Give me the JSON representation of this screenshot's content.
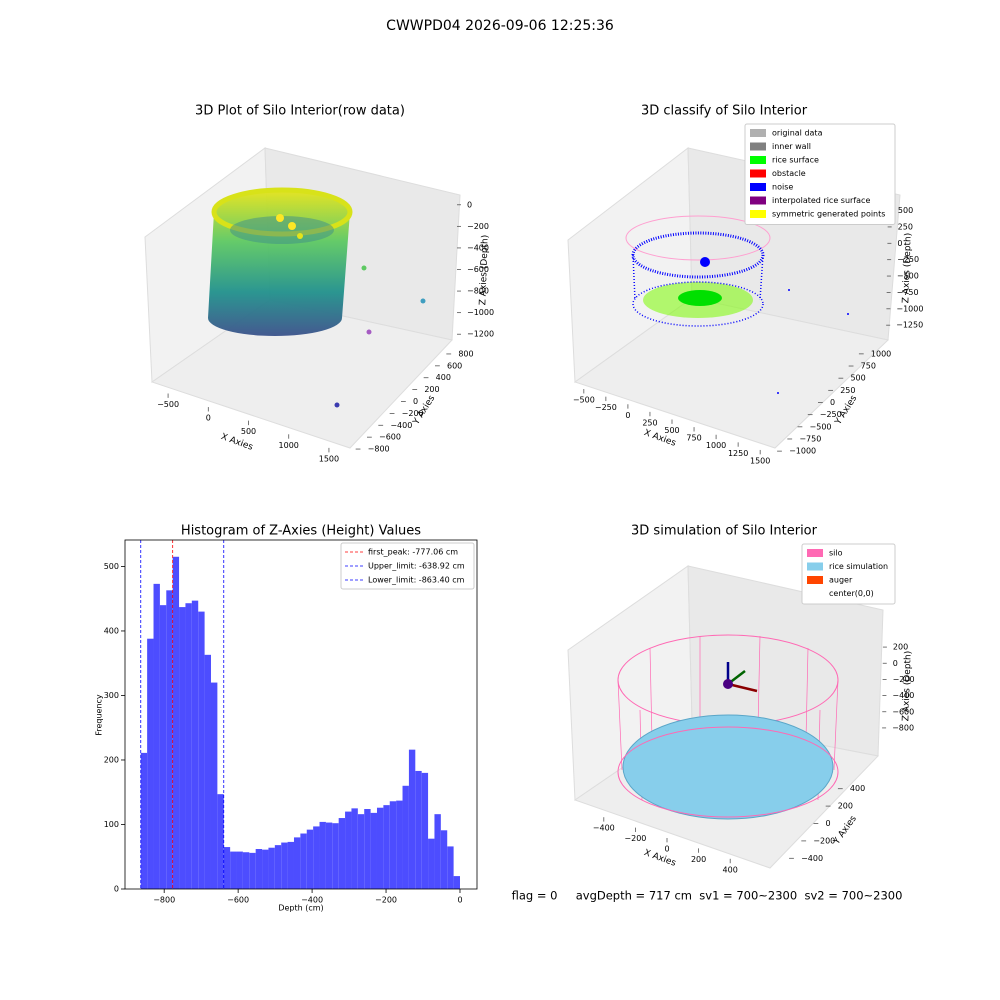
{
  "suptitle": "CWWPD04 2026-09-06 12:25:36",
  "status": "flag = 0     avgDepth = 717 cm  sv1 = 700~2300  sv2 = 700~2300",
  "chart_data": [
    {
      "type": "scatter3d",
      "title": "3D Plot of Silo Interior(row data)",
      "xlabel": "X Axies",
      "ylabel": "Y Axies",
      "zlabel": "Z Axies (Depth)",
      "xlim": [
        -700,
        1650
      ],
      "xticks": [
        {
          "value": -500,
          "label": "−500"
        },
        0,
        500,
        1000,
        1500
      ],
      "ylim": [
        -900,
        900
      ],
      "yticks": [
        {
          "value": -800,
          "label": "−800"
        },
        {
          "value": -600,
          "label": "−600"
        },
        {
          "value": -400,
          "label": "−400"
        },
        {
          "value": -200,
          "label": "−200"
        },
        0,
        200,
        400,
        600,
        800
      ],
      "zlim": [
        -1300,
        100
      ],
      "zticks": [
        0,
        {
          "value": -200,
          "label": "−200"
        },
        {
          "value": -400,
          "label": "−400"
        },
        {
          "value": -600,
          "label": "−600"
        },
        {
          "value": -800,
          "label": "−800"
        },
        {
          "value": -1000,
          "label": "−1000"
        },
        {
          "value": -1200,
          "label": "−1200"
        }
      ]
    },
    {
      "type": "scatter3d",
      "title": "3D classify of Silo Interior",
      "xlabel": "X Axies",
      "ylabel": "Y Axies",
      "zlabel": "Z Axies (Depth)",
      "xlim": [
        -600,
        1600
      ],
      "xticks": [
        {
          "value": -500,
          "label": "−500"
        },
        {
          "value": -250,
          "label": "−250"
        },
        0,
        250,
        500,
        750,
        1000,
        1250,
        1500
      ],
      "ylim": [
        -1100,
        1100
      ],
      "yticks": [
        {
          "value": -1000,
          "label": "−1000"
        },
        {
          "value": -750,
          "label": "−750"
        },
        {
          "value": -500,
          "label": "−500"
        },
        {
          "value": -250,
          "label": "−250"
        },
        0,
        250,
        500,
        750,
        1000
      ],
      "zlim": [
        -1400,
        600
      ],
      "zticks": [
        500,
        250,
        0,
        {
          "value": -250,
          "label": "−250"
        },
        {
          "value": -500,
          "label": "−500"
        },
        {
          "value": -750,
          "label": "−750"
        },
        {
          "value": -1000,
          "label": "−1000"
        },
        {
          "value": -1250,
          "label": "−1250"
        }
      ],
      "legend": [
        {
          "name": "original data",
          "color": "#b0b0b0"
        },
        {
          "name": "inner wall",
          "color": "#808080"
        },
        {
          "name": "rice surface",
          "color": "#00ff00"
        },
        {
          "name": "obstacle",
          "color": "#ff0000"
        },
        {
          "name": "noise",
          "color": "#0000ff"
        },
        {
          "name": "interpolated rice surface",
          "color": "#800080"
        },
        {
          "name": "symmetric generated points",
          "color": "#ffff00"
        }
      ]
    },
    {
      "type": "histogram",
      "title": "Histogram of Z-Axies (Height) Values",
      "xlabel": "Depth (cm)",
      "ylabel": "Frequency",
      "color": "#4d4dff",
      "bins": [
        -863.4,
        -846.13,
        -828.86,
        -811.6,
        -794.33,
        -777.06,
        -759.79,
        -742.52,
        -725.26,
        -707.99,
        -690.72,
        -673.45,
        -656.18,
        -638.92,
        -621.65,
        -604.38,
        -587.11,
        -569.84,
        -552.58,
        -535.31,
        -518.04,
        -500.77,
        -483.5,
        -466.24,
        -448.97,
        -431.7,
        -414.43,
        -397.16,
        -379.9,
        -362.63,
        -345.36,
        -328.09,
        -310.82,
        -293.56,
        -276.29,
        -259.02,
        -241.75,
        -224.48,
        -207.22,
        -189.95,
        -172.68,
        -155.41,
        -138.14,
        -120.88,
        -103.61,
        -86.34,
        -69.07,
        -51.8,
        -34.54,
        -17.27,
        0
      ],
      "values": [
        211,
        388,
        473,
        440,
        463,
        515,
        437,
        443,
        447,
        430,
        363,
        320,
        147,
        65,
        58,
        58,
        57,
        56,
        62,
        61,
        64,
        68,
        72,
        73,
        80,
        86,
        92,
        97,
        104,
        103,
        102,
        110,
        120,
        125,
        116,
        124,
        118,
        126,
        130,
        136,
        137,
        160,
        216,
        183,
        180,
        78,
        116,
        91,
        66,
        20
      ],
      "xlim": [
        -906,
        46
      ],
      "xticks": [
        {
          "value": -800,
          "label": "−800"
        },
        {
          "value": -600,
          "label": "−600"
        },
        {
          "value": -400,
          "label": "−400"
        },
        {
          "value": -200,
          "label": "−200"
        },
        0
      ],
      "ylim": [
        0,
        541
      ],
      "yticks": [
        0,
        100,
        200,
        300,
        400,
        500
      ],
      "vlines": [
        {
          "label": "first_peak: -777.06 cm",
          "value": -777.06,
          "color": "#ff0000"
        },
        {
          "label": "Upper_limit: -638.92 cm",
          "value": -638.92,
          "color": "#0000ff"
        },
        {
          "label": "Lower_limit: -863.40 cm",
          "value": -863.4,
          "color": "#0000ff"
        }
      ]
    },
    {
      "type": "scatter3d",
      "title": "3D simulation of Silo Interior",
      "xlabel": "X Axies",
      "ylabel": "Y Axies",
      "zlabel": "Z Axies (Depth)",
      "xlim": [
        -500,
        500
      ],
      "xticks": [
        {
          "value": -400,
          "label": "−400"
        },
        {
          "value": -200,
          "label": "−200"
        },
        0,
        200,
        400
      ],
      "ylim": [
        -500,
        500
      ],
      "yticks": [
        {
          "value": -400,
          "label": "−400"
        },
        {
          "value": -200,
          "label": "−200"
        },
        0,
        200,
        400
      ],
      "zlim": [
        -900,
        300
      ],
      "zticks": [
        200,
        0,
        {
          "value": -200,
          "label": "−200"
        },
        {
          "value": -400,
          "label": "−400"
        },
        {
          "value": -600,
          "label": "−600"
        },
        {
          "value": -800,
          "label": "−800"
        }
      ],
      "legend": [
        {
          "name": "silo",
          "color": "#ff69b4"
        },
        {
          "name": "rice simulation",
          "color": "#87ceeb"
        },
        {
          "name": "auger",
          "color": "#ff4500"
        },
        {
          "name": "center(0,0)",
          "color": "#ffffff"
        }
      ]
    }
  ]
}
